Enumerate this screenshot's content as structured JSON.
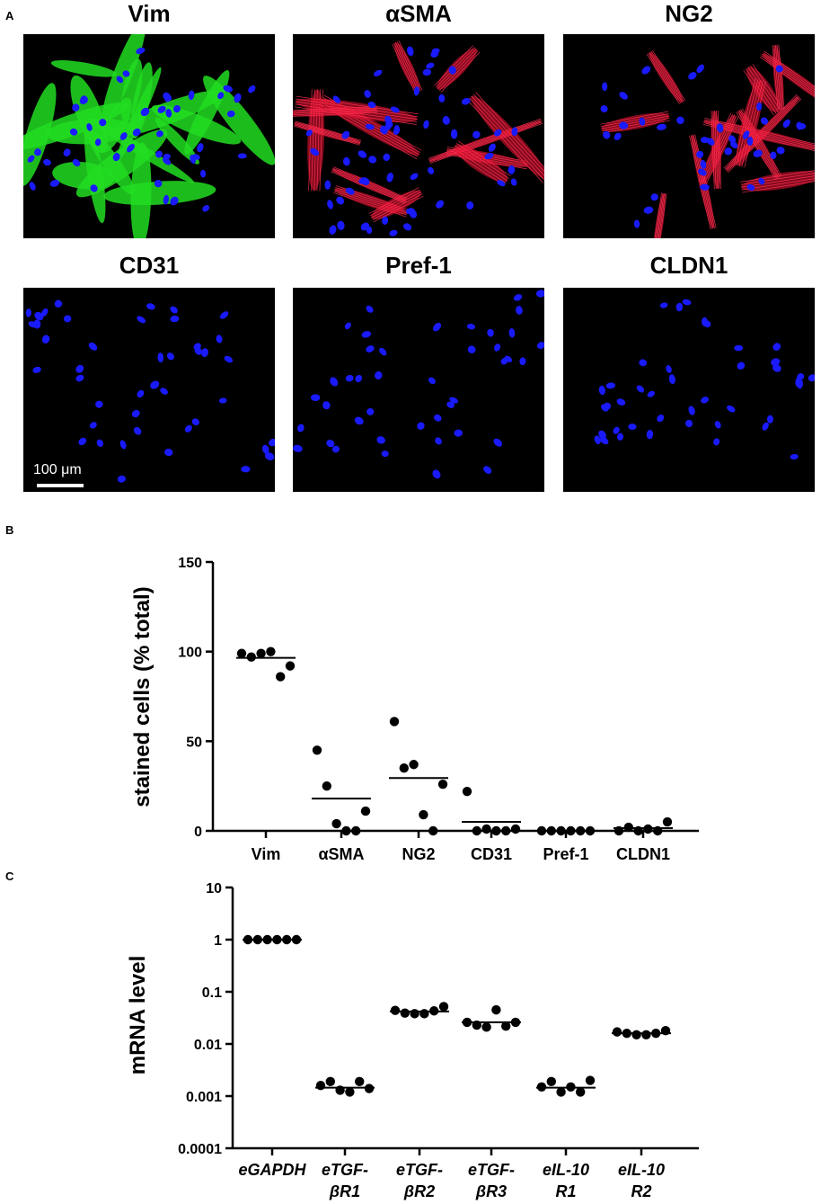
{
  "panels": {
    "a": "A",
    "b": "B",
    "c": "C"
  },
  "panel_a": {
    "images": [
      {
        "title": "Vim",
        "stain": "green"
      },
      {
        "title": "αSMA",
        "stain": "red"
      },
      {
        "title": "NG2",
        "stain": "red"
      },
      {
        "title": "CD31",
        "stain": "none"
      },
      {
        "title": "Pref-1",
        "stain": "none"
      },
      {
        "title": "CLDN1",
        "stain": "none"
      }
    ],
    "scale_bar": "100 μm",
    "colors": {
      "nuclei": "#1a1aff",
      "green": "#22dd22",
      "red": "#e01030"
    }
  },
  "chart_data": [
    {
      "type": "scatter",
      "panel": "B",
      "ylabel": "stained cells (% total)",
      "ylim": [
        0,
        150
      ],
      "yticks": [
        0,
        50,
        100,
        150
      ],
      "categories": [
        "Vim",
        "αSMA",
        "NG2",
        "CD31",
        "Pref-1",
        "CLDN1"
      ],
      "points": [
        [
          99,
          97,
          99,
          100,
          86,
          92
        ],
        [
          45,
          25,
          4,
          0,
          0,
          11
        ],
        [
          61,
          35,
          37,
          9,
          0,
          26
        ],
        [
          22,
          0,
          1,
          0,
          0,
          1
        ],
        [
          0,
          0,
          0,
          0,
          0,
          0
        ],
        [
          0,
          2,
          0,
          1,
          0,
          5
        ]
      ],
      "means": [
        96.5,
        18,
        29.5,
        5,
        0,
        1.5
      ]
    },
    {
      "type": "scatter",
      "panel": "C",
      "ylabel": "mRNA level",
      "yscale": "log",
      "ylim": [
        0.0001,
        10
      ],
      "yticks": [
        "0.0001",
        "0.001",
        "0.01",
        "0.1",
        "1",
        "10"
      ],
      "categories": [
        {
          "line1": "eGAPDH",
          "line2": ""
        },
        {
          "line1": "eTGF-",
          "line2": "βR1"
        },
        {
          "line1": "eTGF-",
          "line2": "βR2"
        },
        {
          "line1": "eTGF-",
          "line2": "βR3"
        },
        {
          "line1": "eIL-10",
          "line2": "R1"
        },
        {
          "line1": "eIL-10",
          "line2": "R2"
        }
      ],
      "points": [
        [
          1,
          1,
          1,
          1,
          1,
          1
        ],
        [
          0.0016,
          0.0019,
          0.0013,
          0.0012,
          0.0019,
          0.0014
        ],
        [
          0.044,
          0.039,
          0.038,
          0.038,
          0.043,
          0.052
        ],
        [
          0.026,
          0.023,
          0.021,
          0.045,
          0.022,
          0.026
        ],
        [
          0.0015,
          0.0019,
          0.0012,
          0.0015,
          0.0012,
          0.002
        ],
        [
          0.017,
          0.016,
          0.015,
          0.015,
          0.016,
          0.018
        ]
      ],
      "means": [
        1,
        0.00145,
        0.042,
        0.026,
        0.00145,
        0.016
      ]
    }
  ]
}
